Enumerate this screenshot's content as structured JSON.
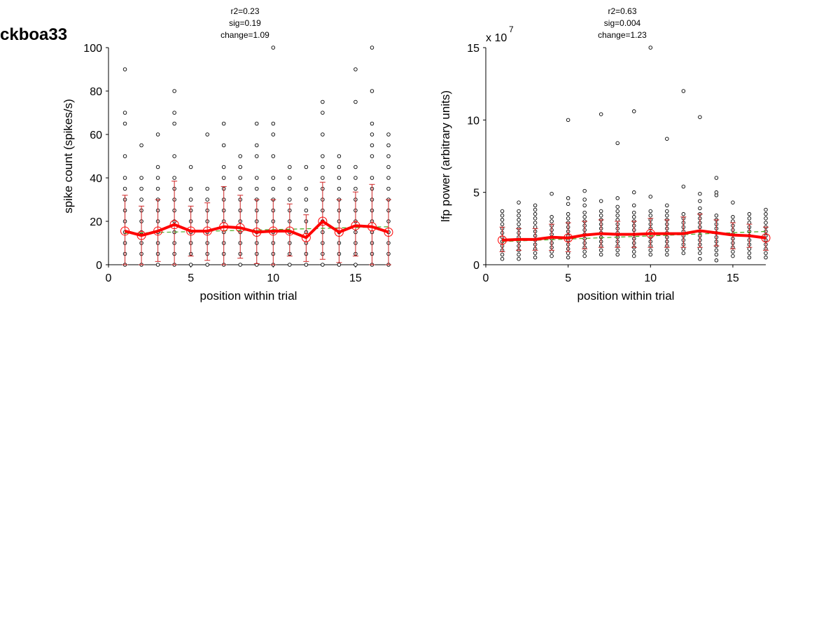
{
  "figure": {
    "label": "ckboa33"
  },
  "colors": {
    "mean_line": "#ff0000",
    "error_bar": "#cc2222",
    "fit_line": "#44aa22",
    "points": "#000000"
  },
  "chart_data": [
    {
      "type": "scatter",
      "title": "",
      "stats": [
        "r2=0.23",
        "sig=0.19",
        "change=1.09"
      ],
      "xlabel": "position within trial",
      "ylabel": "spike count (spikes/s)",
      "exponent_label": "",
      "xlim": [
        0,
        17
      ],
      "ylim": [
        0,
        100
      ],
      "xticks": [
        0,
        5,
        10,
        15
      ],
      "yticks": [
        0,
        20,
        40,
        60,
        80,
        100
      ],
      "x": [
        1,
        2,
        3,
        4,
        5,
        6,
        7,
        8,
        9,
        10,
        11,
        12,
        13,
        14,
        15,
        16,
        17
      ],
      "points": [
        [
          0,
          5,
          10,
          15,
          20,
          25,
          30,
          35,
          40,
          50,
          65,
          70,
          90
        ],
        [
          0,
          5,
          10,
          15,
          20,
          25,
          30,
          35,
          40,
          55
        ],
        [
          0,
          5,
          10,
          15,
          20,
          25,
          30,
          35,
          40,
          45,
          60
        ],
        [
          0,
          5,
          10,
          15,
          20,
          25,
          30,
          35,
          40,
          50,
          65,
          70,
          80
        ],
        [
          0,
          5,
          10,
          15,
          20,
          25,
          30,
          35,
          45
        ],
        [
          0,
          5,
          10,
          15,
          20,
          25,
          30,
          35,
          60
        ],
        [
          0,
          5,
          10,
          15,
          20,
          25,
          30,
          35,
          40,
          45,
          55,
          65
        ],
        [
          0,
          5,
          10,
          15,
          20,
          25,
          30,
          35,
          40,
          45,
          50
        ],
        [
          0,
          5,
          10,
          15,
          20,
          25,
          30,
          35,
          40,
          50,
          55,
          65
        ],
        [
          0,
          5,
          10,
          15,
          20,
          25,
          30,
          35,
          40,
          50,
          60,
          65,
          100
        ],
        [
          0,
          5,
          10,
          15,
          20,
          25,
          30,
          35,
          40,
          45
        ],
        [
          0,
          5,
          10,
          15,
          20,
          25,
          30,
          35,
          45
        ],
        [
          0,
          5,
          10,
          15,
          20,
          25,
          30,
          35,
          40,
          45,
          50,
          60,
          70,
          75
        ],
        [
          0,
          5,
          10,
          15,
          20,
          25,
          30,
          35,
          40,
          45,
          50
        ],
        [
          0,
          5,
          10,
          15,
          20,
          25,
          30,
          35,
          40,
          45,
          75,
          90
        ],
        [
          0,
          5,
          10,
          15,
          20,
          25,
          30,
          35,
          40,
          50,
          55,
          60,
          65,
          80,
          100
        ],
        [
          0,
          5,
          10,
          15,
          20,
          25,
          30,
          35,
          40,
          45,
          50,
          55,
          60
        ]
      ],
      "mean": [
        15.5,
        13.5,
        15.5,
        18.5,
        15.5,
        15.5,
        17.5,
        17.0,
        15.0,
        15.5,
        15.5,
        12.5,
        20.0,
        15.0,
        18.0,
        17.5,
        15.0
      ],
      "err_low": [
        0,
        0,
        1.5,
        0,
        4,
        2,
        0,
        3,
        0.5,
        0,
        4,
        1.5,
        2.5,
        1,
        4,
        0,
        0
      ],
      "err_high": [
        32,
        27,
        30,
        38.5,
        27,
        28.5,
        36,
        32,
        30,
        30,
        28,
        23,
        38,
        30,
        33.5,
        37,
        30
      ],
      "fit": [
        14.5,
        17.5
      ],
      "markers": [
        1,
        2,
        3,
        4,
        5,
        6,
        7,
        8,
        9,
        10,
        11,
        12,
        13,
        14,
        15,
        16,
        17
      ]
    },
    {
      "type": "scatter",
      "title": "",
      "stats": [
        "r2=0.63",
        "sig=0.004",
        "change=1.23"
      ],
      "xlabel": "position within trial",
      "ylabel": "lfp power (arbitrary units)",
      "exponent_label": "x 10",
      "exponent_power": "7",
      "xlim": [
        0,
        17
      ],
      "ylim": [
        0,
        15
      ],
      "xticks": [
        0,
        5,
        10,
        15
      ],
      "yticks": [
        0,
        5,
        10,
        15
      ],
      "x": [
        1,
        2,
        3,
        4,
        5,
        6,
        7,
        8,
        9,
        10,
        11,
        12,
        13,
        14,
        15,
        16,
        17
      ],
      "points": [
        [
          0.4,
          0.7,
          1.0,
          1.3,
          1.6,
          1.9,
          2.2,
          2.5,
          2.8,
          3.1,
          3.4,
          3.7
        ],
        [
          0.4,
          0.7,
          1.0,
          1.3,
          1.6,
          1.9,
          2.2,
          2.5,
          2.8,
          3.1,
          3.4,
          3.7,
          4.3
        ],
        [
          0.5,
          0.8,
          1.1,
          1.4,
          1.7,
          2.0,
          2.3,
          2.6,
          2.9,
          3.2,
          3.5,
          3.8,
          4.1
        ],
        [
          0.6,
          0.9,
          1.2,
          1.5,
          1.8,
          2.1,
          2.4,
          2.7,
          3.0,
          3.3,
          4.9
        ],
        [
          0.5,
          0.8,
          1.1,
          1.4,
          1.7,
          2.0,
          2.3,
          2.6,
          2.9,
          3.2,
          3.5,
          4.2,
          4.6,
          10.0
        ],
        [
          0.6,
          0.9,
          1.2,
          1.5,
          1.8,
          2.1,
          2.4,
          2.7,
          3.0,
          3.3,
          3.6,
          4.1,
          4.5,
          5.1
        ],
        [
          0.7,
          1.0,
          1.3,
          1.6,
          1.9,
          2.2,
          2.5,
          2.8,
          3.1,
          3.4,
          3.7,
          4.4,
          10.4
        ],
        [
          0.7,
          1.0,
          1.3,
          1.6,
          1.9,
          2.2,
          2.5,
          2.8,
          3.1,
          3.4,
          3.7,
          4.0,
          4.6,
          8.4
        ],
        [
          0.6,
          0.9,
          1.2,
          1.5,
          1.8,
          2.1,
          2.4,
          2.7,
          3.0,
          3.3,
          3.6,
          4.1,
          5.0,
          10.6
        ],
        [
          0.7,
          1.0,
          1.3,
          1.6,
          1.9,
          2.2,
          2.5,
          2.8,
          3.1,
          3.4,
          3.7,
          4.7,
          15.0
        ],
        [
          0.7,
          1.0,
          1.3,
          1.6,
          1.9,
          2.2,
          2.5,
          2.8,
          3.1,
          3.4,
          3.7,
          4.1,
          8.7
        ],
        [
          0.8,
          1.1,
          1.4,
          1.7,
          2.0,
          2.3,
          2.6,
          2.9,
          3.2,
          3.5,
          5.4,
          12.0
        ],
        [
          0.4,
          0.8,
          1.1,
          1.4,
          1.7,
          2.0,
          2.3,
          2.6,
          2.9,
          3.2,
          3.5,
          3.9,
          4.4,
          4.9,
          10.2
        ],
        [
          0.3,
          0.7,
          1.0,
          1.3,
          1.6,
          1.9,
          2.2,
          2.5,
          2.8,
          3.1,
          3.4,
          4.8,
          5.0,
          6.0
        ],
        [
          0.6,
          0.9,
          1.2,
          1.5,
          1.8,
          2.1,
          2.4,
          2.7,
          3.0,
          3.3,
          4.3
        ],
        [
          0.5,
          0.8,
          1.1,
          1.4,
          1.7,
          2.0,
          2.3,
          2.6,
          2.9,
          3.2,
          3.5
        ],
        [
          0.5,
          0.8,
          1.1,
          1.4,
          1.7,
          2.0,
          2.3,
          2.6,
          2.9,
          3.2,
          3.5,
          3.8
        ]
      ],
      "mean": [
        1.7,
        1.75,
        1.75,
        1.9,
        1.85,
        2.05,
        2.15,
        2.1,
        2.1,
        2.15,
        2.15,
        2.15,
        2.35,
        2.2,
        2.05,
        2.0,
        1.85
      ],
      "err_low": [
        0.9,
        1.0,
        1.0,
        1.0,
        0.9,
        1.1,
        1.2,
        1.2,
        1.2,
        1.2,
        1.2,
        1.2,
        1.2,
        1.3,
        1.1,
        1.2,
        1.0
      ],
      "err_high": [
        2.6,
        2.5,
        2.5,
        2.8,
        2.9,
        3.0,
        3.1,
        3.0,
        3.0,
        3.2,
        3.1,
        3.3,
        3.5,
        3.1,
        2.9,
        2.8,
        2.6
      ],
      "fit": [
        1.6,
        2.3
      ],
      "markers": [
        1,
        5,
        10,
        17
      ]
    }
  ]
}
